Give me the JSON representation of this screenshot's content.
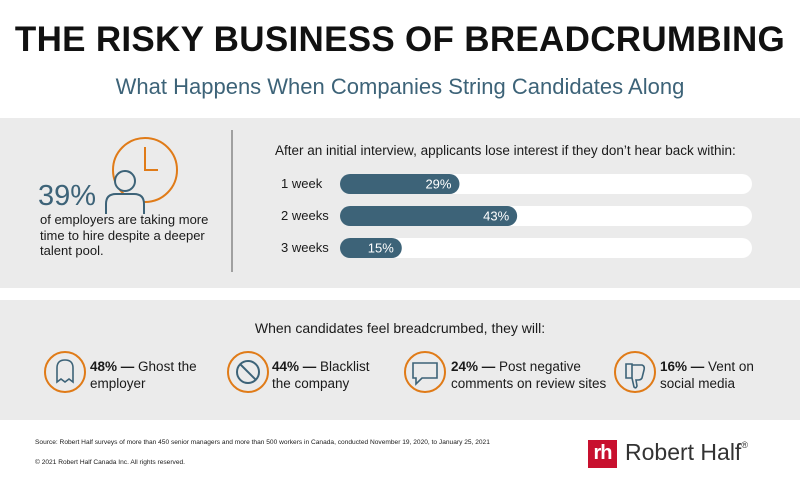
{
  "header": {
    "title": "THE RISKY BUSINESS OF BREADCRUMBING",
    "subtitle": "What Happens When Companies String Candidates Along"
  },
  "stat": {
    "value": "39%",
    "text": "of employers are taking more time to hire despite a deeper talent pool."
  },
  "chart_data": {
    "type": "bar",
    "orientation": "horizontal",
    "title": "After an initial interview, applicants lose interest if they don’t hear back within:",
    "categories": [
      "1 week",
      "2 weeks",
      "3 weeks"
    ],
    "values": [
      29,
      43,
      15
    ],
    "value_labels": [
      "29%",
      "43%",
      "15%"
    ],
    "color": "#3d6378",
    "xlim": [
      0,
      100
    ]
  },
  "reactions": {
    "heading": "When candidates feel breadcrumbed, they will:",
    "items": [
      {
        "lead": "48% —",
        "text": "Ghost the employer"
      },
      {
        "lead": "44% —",
        "text": "Blacklist the company"
      },
      {
        "lead": "24% —",
        "text": "Post negative comments on review sites"
      },
      {
        "lead": "16% —",
        "text": "Vent on social media"
      }
    ]
  },
  "footer": {
    "source": "Source: Robert Half surveys of more than 450 senior managers and more than 500 workers in Canada, conducted November 19, 2020, to January 25, 2021",
    "copyright": "© 2021 Robert Half Canada Inc. All rights reserved.",
    "logo": {
      "mark": "rh",
      "name": "Robert Half",
      "reg": "®"
    }
  }
}
